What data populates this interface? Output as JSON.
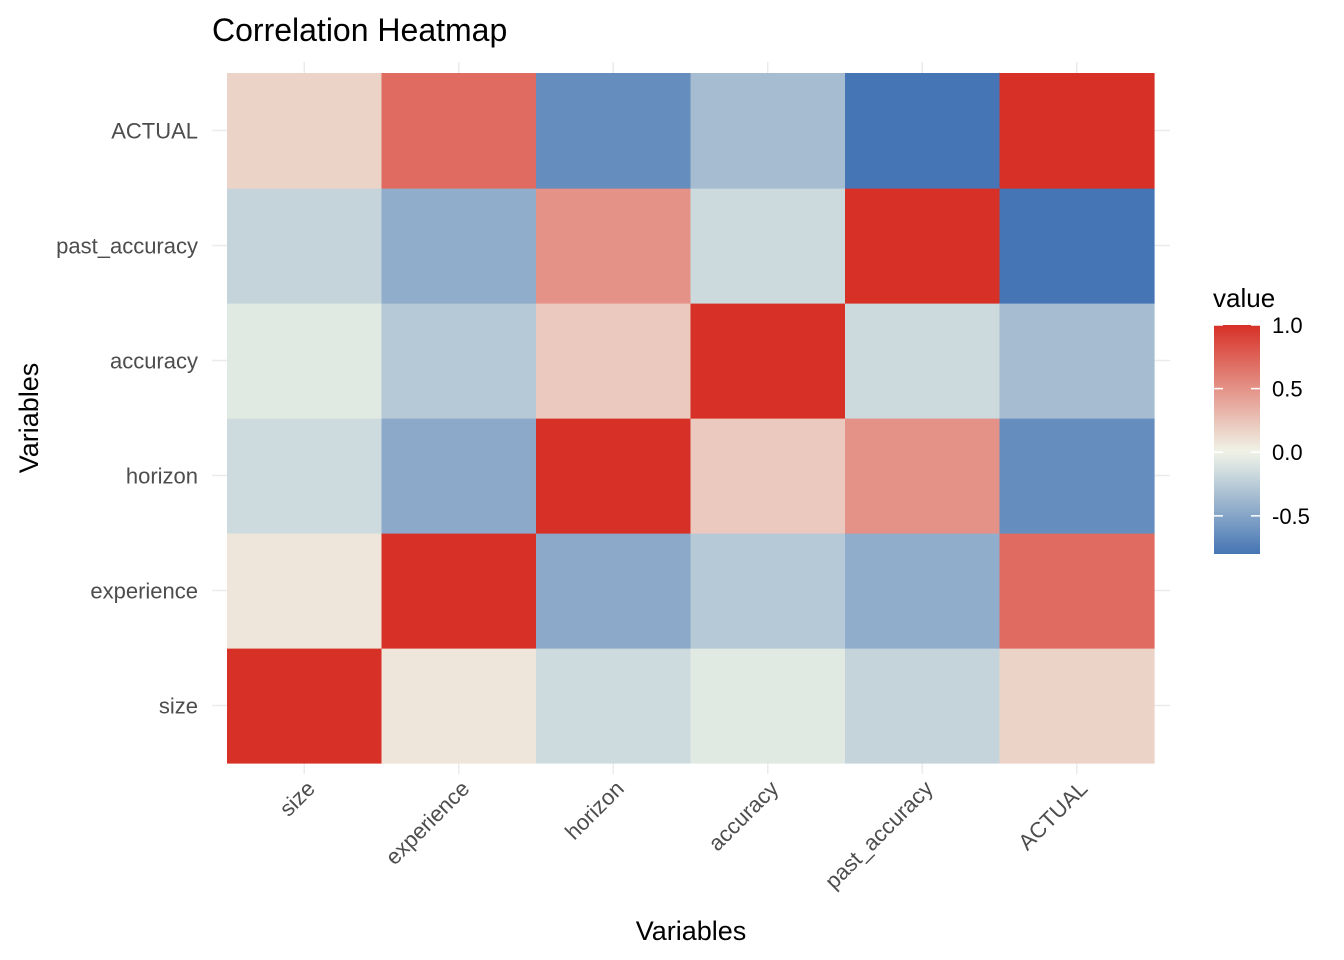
{
  "chart_data": {
    "type": "heatmap",
    "title": "Correlation Heatmap",
    "xlabel": "Variables",
    "ylabel": "Variables",
    "x_categories": [
      "size",
      "experience",
      "horizon",
      "accuracy",
      "past_accuracy",
      "ACTUAL"
    ],
    "y_categories": [
      "size",
      "experience",
      "horizon",
      "accuracy",
      "past_accuracy",
      "ACTUAL"
    ],
    "values": [
      [
        1.0,
        0.07,
        -0.16,
        -0.07,
        -0.2,
        0.17
      ],
      [
        0.07,
        1.0,
        -0.47,
        -0.27,
        -0.45,
        0.7
      ],
      [
        -0.16,
        -0.47,
        1.0,
        0.22,
        0.5,
        -0.65
      ],
      [
        -0.07,
        -0.27,
        0.22,
        1.0,
        -0.17,
        -0.35
      ],
      [
        -0.2,
        -0.45,
        0.5,
        -0.17,
        1.0,
        -0.8
      ],
      [
        0.17,
        0.7,
        -0.65,
        -0.35,
        -0.8,
        1.0
      ]
    ],
    "color_scale": {
      "min_color": "#4575b4",
      "mid_color": "#f0f4e8",
      "max_color": "#d73027",
      "range": [
        -0.8,
        1.0
      ]
    },
    "legend": {
      "title": "value",
      "ticks": [
        1.0,
        0.5,
        0.0,
        -0.5
      ],
      "tick_labels": [
        "1.0",
        "0.5",
        "0.0",
        "-0.5"
      ],
      "placement": "right"
    },
    "grid": true
  }
}
